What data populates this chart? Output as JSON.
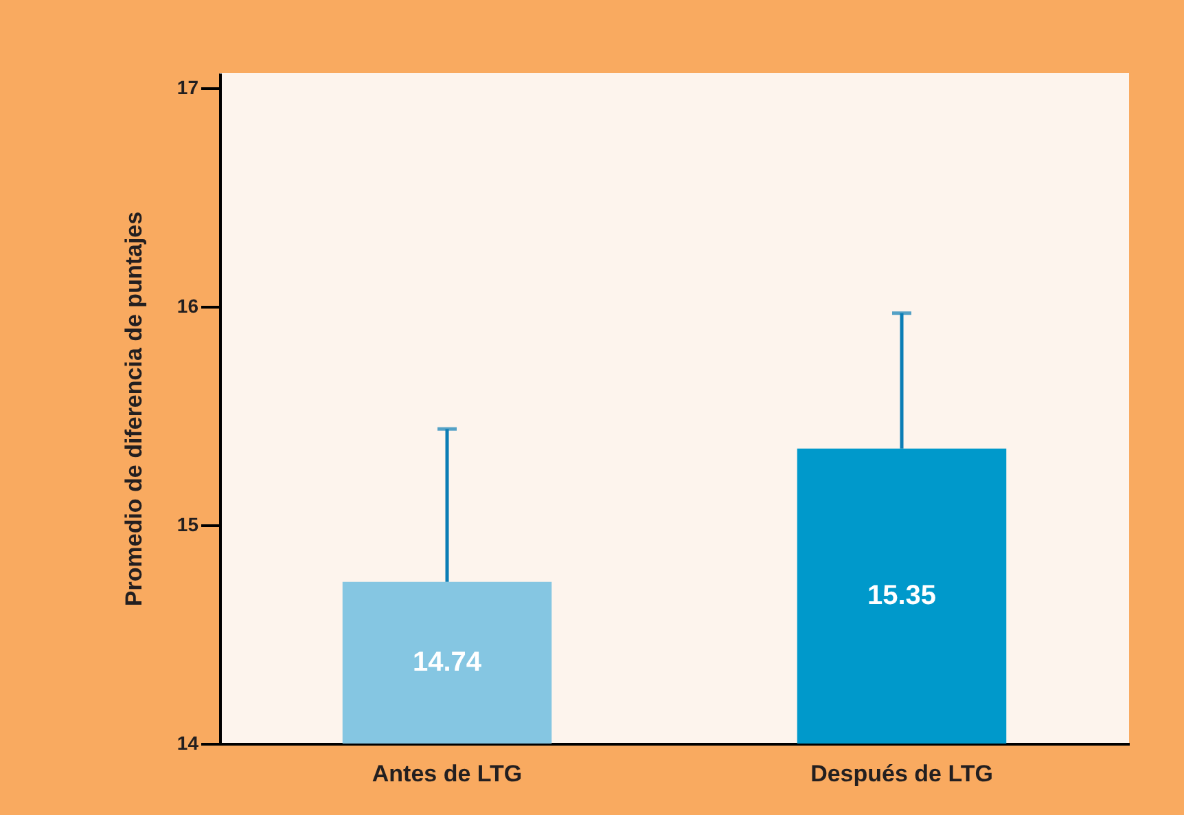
{
  "chart_data": {
    "type": "bar",
    "ylabel": "Promedio de diferencia de puntajes",
    "categories": [
      "Antes de LTG",
      "Después de LTG"
    ],
    "values": [
      14.74,
      15.35
    ],
    "colors": [
      "#85c6e2",
      "#0099cb"
    ],
    "errors": [
      [
        14.74,
        15.44
      ],
      [
        15.35,
        15.97
      ]
    ],
    "ylim": [
      14,
      17.07
    ],
    "yticks": [
      14,
      15,
      16,
      17
    ],
    "data_labels": true,
    "grid": false,
    "legend": false
  }
}
